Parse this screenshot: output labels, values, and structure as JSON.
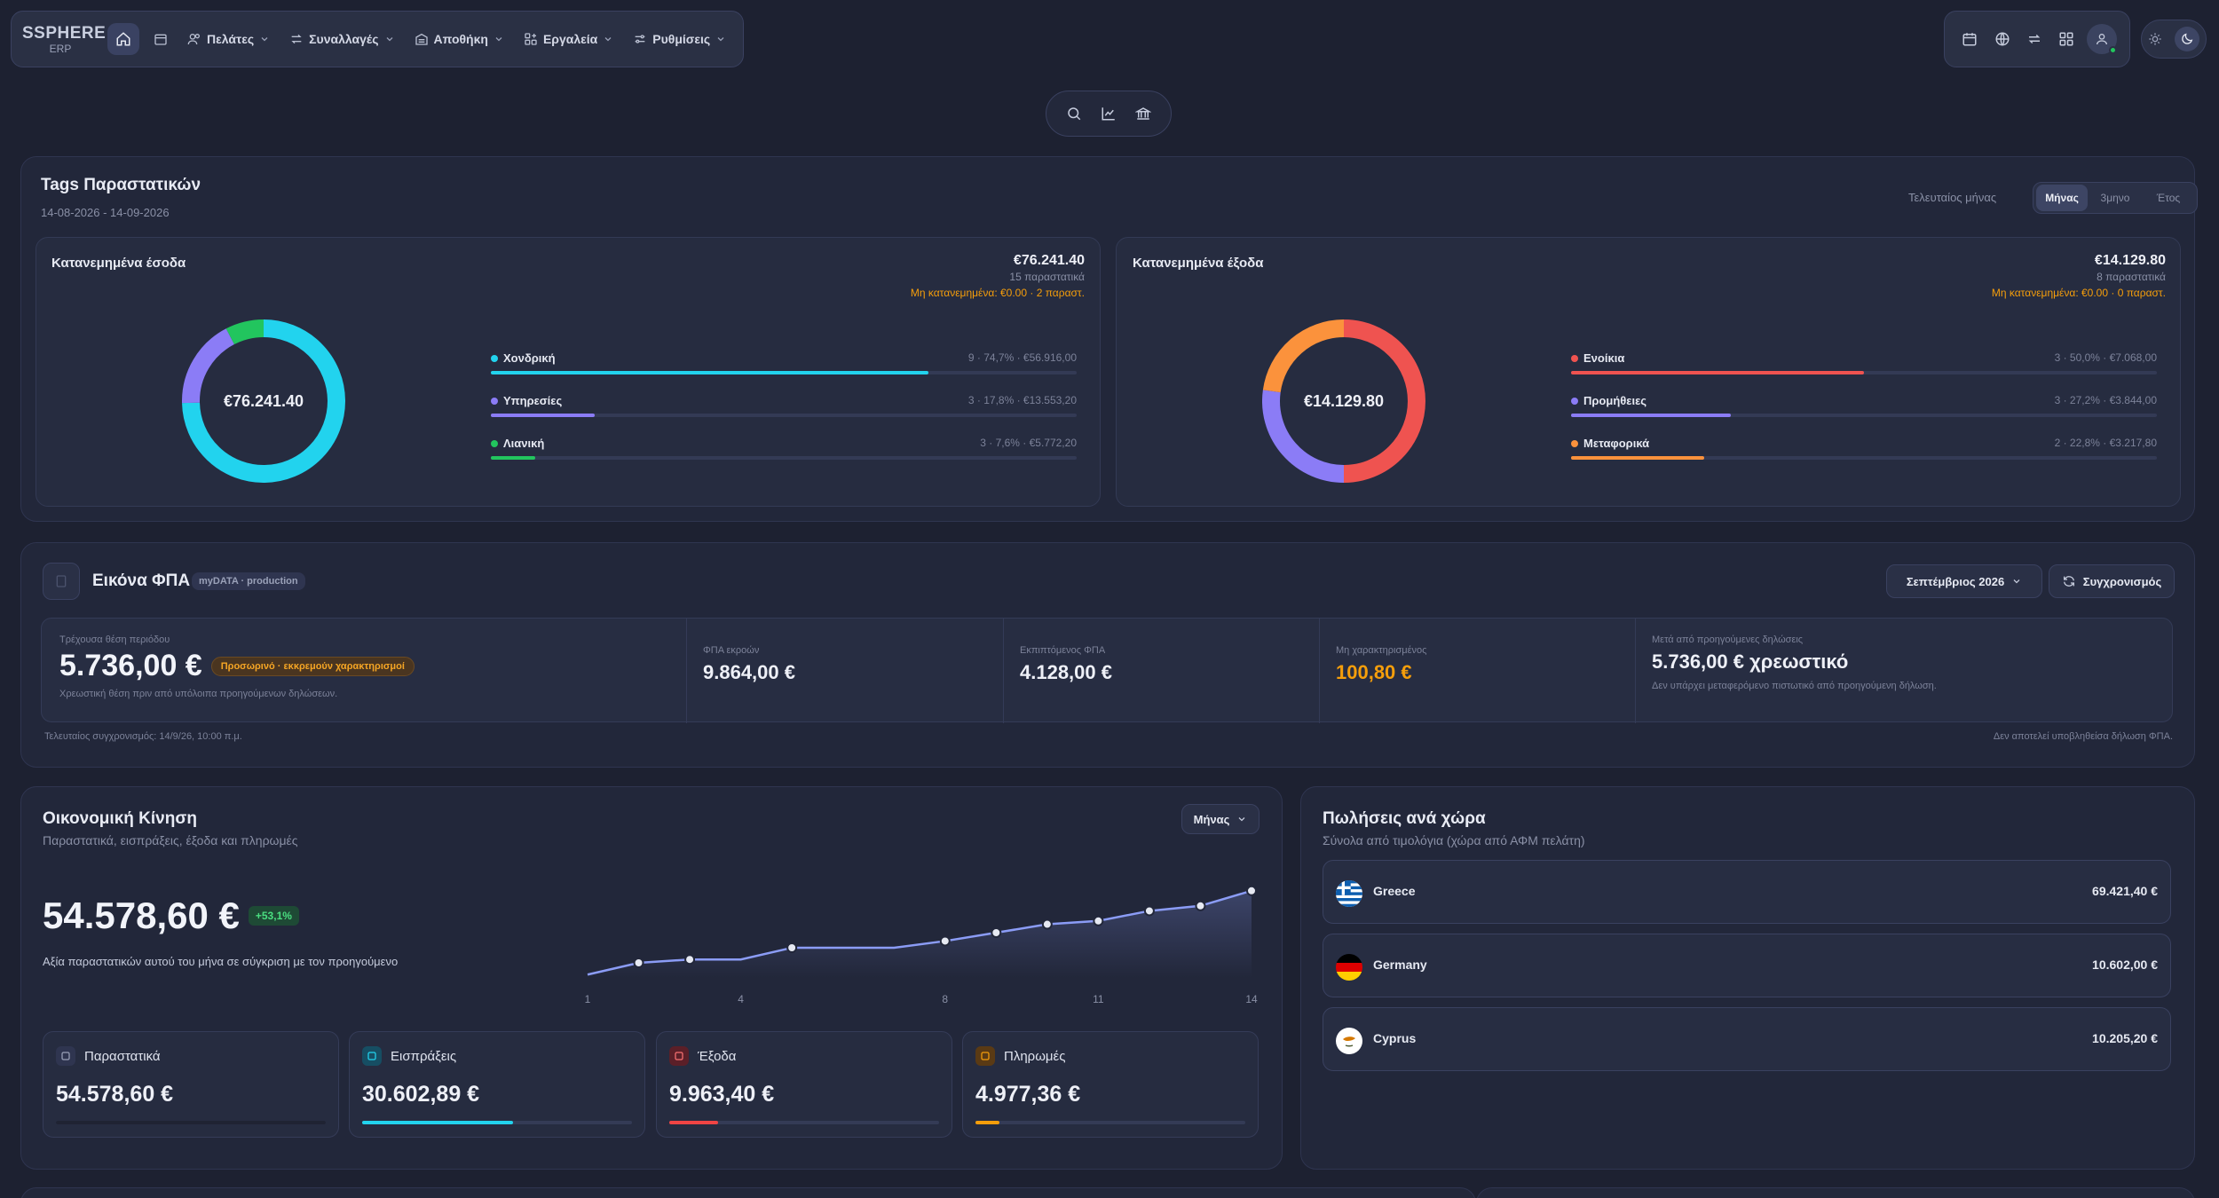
{
  "app": {
    "logo_line1": "SSPHERE",
    "logo_line2": "ERP"
  },
  "nav": {
    "customers": "Πελάτες",
    "transactions": "Συναλλαγές",
    "warehouse": "Αποθήκη",
    "tools": "Εργαλεία",
    "settings": "Ρυθμίσεις"
  },
  "tags": {
    "title": "Tags Παραστατικών",
    "date_range": "14-08-2026 - 14-09-2026",
    "period_label": "Τελευταίος μήνας",
    "periods": [
      "Μήνας",
      "3μηνο",
      "Έτος"
    ],
    "active_period": "Μήνας",
    "income": {
      "title": "Κατανεμημένα έσοδα",
      "total": "€76.241.40",
      "docs": "15 παραστατικά",
      "unallocated": "Μη κατανεμημένα: €0.00 · 2 παραστ.",
      "center": "€76.241.40",
      "items": [
        {
          "name": "Χονδρική",
          "value": "9 · 74,7% · €56.916,00",
          "pct": 74.7,
          "color": "#22d3ee"
        },
        {
          "name": "Υπηρεσίες",
          "value": "3 · 17,8% · €13.553,20",
          "pct": 17.8,
          "color": "#8b7cf6"
        },
        {
          "name": "Λιανική",
          "value": "3 · 7,6% · €5.772,20",
          "pct": 7.6,
          "color": "#22c55e"
        }
      ]
    },
    "expenses": {
      "title": "Κατανεμημένα έξοδα",
      "total": "€14.129.80",
      "docs": "8 παραστατικά",
      "unallocated": "Μη κατανεμημένα: €0.00 · 0 παραστ.",
      "center": "€14.129.80",
      "items": [
        {
          "name": "Ενοίκια",
          "value": "3 · 50,0% · €7.068,00",
          "pct": 50.0,
          "color": "#ef5350"
        },
        {
          "name": "Προμήθειες",
          "value": "3 · 27,2% · €3.844,00",
          "pct": 27.2,
          "color": "#8b7cf6"
        },
        {
          "name": "Μεταφορικά",
          "value": "2 · 22,8% · €3.217,80",
          "pct": 22.8,
          "color": "#fb923c"
        }
      ]
    }
  },
  "vat": {
    "title": "Εικόνα ΦΠΑ",
    "env_badge": "myDATA · production",
    "month": "Σεπτέμβριος 2026",
    "sync_button": "Συγχρονισμός",
    "current_label": "Τρέχουσα θέση περιόδου",
    "current_value": "5.736,00 €",
    "pending_badge": "Προσωρινό · εκκρεμούν χαρακτηρισμοί",
    "current_note": "Χρεωστική θέση πριν από υπόλοιπα προηγούμενων δηλώσεων.",
    "output_label": "ΦΠΑ εκροών",
    "output_value": "9.864,00 €",
    "deductible_label": "Εκπιπτόμενος ΦΠΑ",
    "deductible_value": "4.128,00 €",
    "uncharacterized_label": "Μη χαρακτηρισμένος",
    "uncharacterized_value": "100,80 €",
    "after_label": "Μετά από προηγούμενες δηλώσεις",
    "after_value": "5.736,00 € χρεωστικό",
    "after_note": "Δεν υπάρχει μεταφερόμενο πιστωτικό από προηγούμενη δήλωση.",
    "last_sync": "Τελευταίος συγχρονισμός: 14/9/26, 10:00 π.μ.",
    "disclaimer": "Δεν αποτελεί υποβληθείσα δήλωση ΦΠΑ."
  },
  "finance": {
    "title": "Οικονομική Κίνηση",
    "subtitle": "Παραστατικά, εισπράξεις, έξοδα και πληρωμές",
    "period": "Μήνας",
    "total": "54.578,60 €",
    "change": "+53,1%",
    "caption": "Αξία παραστατικών αυτού του μήνα σε σύγκριση με τον προηγούμενο",
    "kpis": [
      {
        "label": "Παραστατικά",
        "value": "54.578,60 €",
        "pct": 100,
        "color": "#1f2333",
        "icon_bg": "#2f3550",
        "icon_color": "#9aa1b8"
      },
      {
        "label": "Εισπράξεις",
        "value": "30.602,89 €",
        "pct": 56,
        "color": "#22d3ee",
        "icon_bg": "#164e63",
        "icon_color": "#22d3ee"
      },
      {
        "label": "Έξοδα",
        "value": "9.963,40 €",
        "pct": 18,
        "color": "#ef4444",
        "icon_bg": "#5b1f28",
        "icon_color": "#f87171"
      },
      {
        "label": "Πληρωμές",
        "value": "4.977,36 €",
        "pct": 9,
        "color": "#f59e0b",
        "icon_bg": "#5a3a14",
        "icon_color": "#f59e0b"
      }
    ]
  },
  "chart_data": {
    "type": "line",
    "x": [
      1,
      2,
      3,
      4,
      5,
      6,
      7,
      8,
      9,
      10,
      11,
      12,
      13,
      14
    ],
    "values": [
      2,
      9,
      11,
      11,
      18,
      18,
      18,
      22,
      27,
      32,
      34,
      40,
      43,
      52
    ],
    "xticks": [
      "1",
      "4",
      "8",
      "11",
      "14"
    ],
    "xtick_positions": [
      1,
      4,
      8,
      11,
      14
    ],
    "markers_at": [
      2,
      3,
      5,
      8,
      9,
      10,
      11,
      12,
      13,
      14
    ],
    "color": "#8b9cf6",
    "grid": false
  },
  "sales": {
    "title": "Πωλήσεις ανά χώρα",
    "subtitle": "Σύνολα από τιμολόγια (χώρα από ΑΦΜ πελάτη)",
    "countries": [
      {
        "name": "Greece",
        "value": "69.421,40 €",
        "flag": "greece-flag-icon"
      },
      {
        "name": "Germany",
        "value": "10.602,00 €",
        "flag": "germany-flag-icon"
      },
      {
        "name": "Cyprus",
        "value": "10.205,20 €",
        "flag": "cyprus-flag-icon"
      }
    ]
  }
}
